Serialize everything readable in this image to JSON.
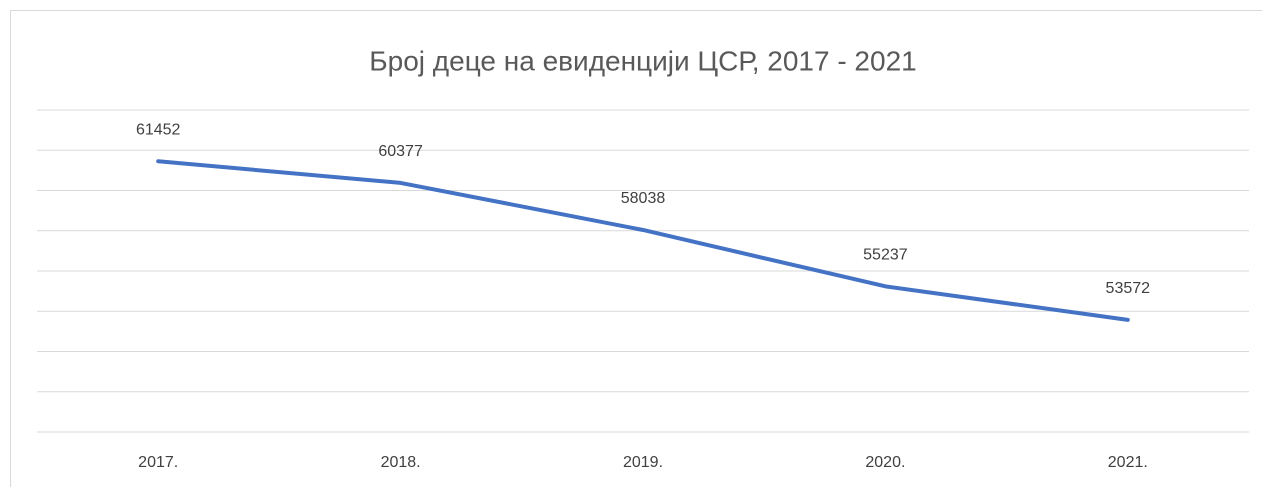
{
  "chart_data": {
    "type": "line",
    "title": "Број деце на евиденцији ЦСР, 2017 - 2021",
    "categories": [
      "2017.",
      "2018.",
      "2019.",
      "2020.",
      "2021."
    ],
    "series": [
      {
        "name": "Број деце",
        "color": "#4472c4",
        "values": [
          61452,
          60377,
          58038,
          55237,
          53572
        ]
      }
    ],
    "ylim": [
      48000,
      64000
    ],
    "yticks": [
      48000,
      50000,
      52000,
      54000,
      56000,
      58000,
      60000,
      62000,
      64000
    ],
    "grid": true
  }
}
